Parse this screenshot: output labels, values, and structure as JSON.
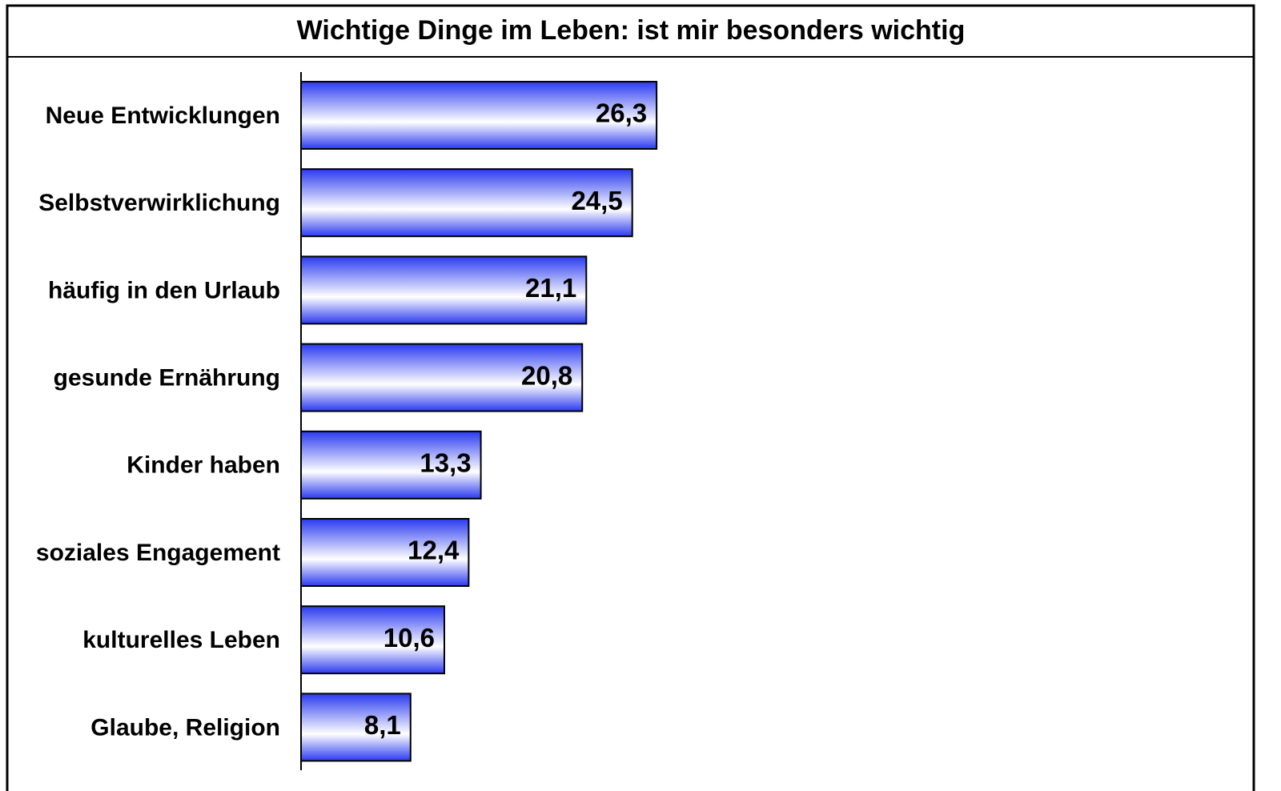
{
  "chart_data": {
    "type": "bar",
    "orientation": "horizontal",
    "title": "Wichtige Dinge im Leben: ist mir besonders wichtig",
    "categories": [
      "Neue Entwicklungen",
      "Selbstverwirklichung",
      "häufig in den Urlaub",
      "gesunde Ernährung",
      "Kinder haben",
      "soziales Engagement",
      "kulturelles Leben",
      "Glaube, Religion"
    ],
    "values": [
      26.3,
      24.5,
      21.1,
      20.8,
      13.3,
      12.4,
      10.6,
      8.1
    ],
    "value_labels": [
      "26,3",
      "24,5",
      "21,1",
      "20,8",
      "13,3",
      "12,4",
      "10,6",
      "8,1"
    ],
    "color": "#2a3af0",
    "xlim": [
      0,
      70
    ]
  }
}
